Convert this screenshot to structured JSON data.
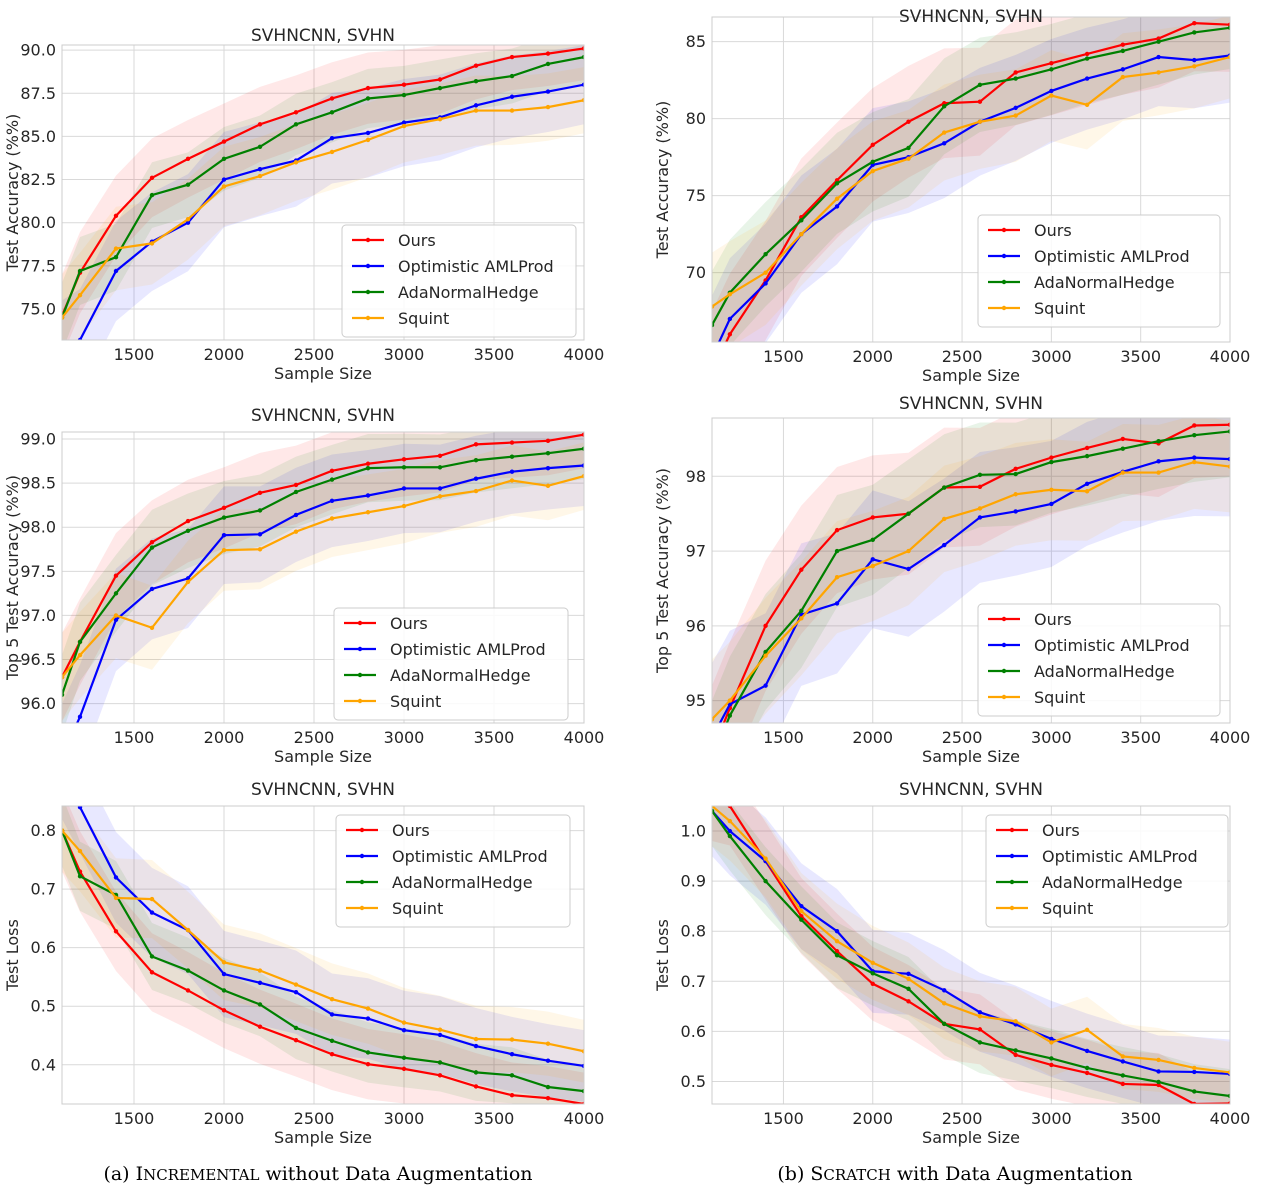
{
  "captions": {
    "left": {
      "prefix": "(a) I",
      "smallcaps": "NCREMENTAL",
      "suffix": " without Data Augmentation"
    },
    "right": {
      "prefix": "(b) S",
      "smallcaps": "CRATCH",
      "suffix": " with Data Augmentation"
    }
  },
  "colors": {
    "Ours": "#ff0000",
    "Optimistic AMLProd": "#0000ff",
    "AdaNormalHedge": "#008000",
    "Squint": "#ffa500"
  },
  "chart_data": [
    {
      "type": "line",
      "title": "SVHNCNN, SVHN",
      "xlabel": "Sample Size",
      "ylabel": "Test Accuracy (%%)",
      "xlim": [
        1100,
        4000
      ],
      "ylim": [
        73.2,
        90.3
      ],
      "xticks": [
        1500,
        2000,
        2500,
        3000,
        3500,
        4000
      ],
      "yticks": [
        75.0,
        77.5,
        80.0,
        82.5,
        85.0,
        87.5,
        90.0
      ],
      "ytick_labels": [
        "75.0",
        "77.5",
        "80.0",
        "82.5",
        "85.0",
        "87.5",
        "90.0"
      ],
      "grid": true,
      "legend": "lower-right",
      "x": [
        1100,
        1200,
        1400,
        1600,
        1800,
        2000,
        2200,
        2400,
        2600,
        2800,
        3000,
        3200,
        3400,
        3600,
        3800,
        4000
      ],
      "series": [
        {
          "name": "Ours",
          "values": [
            74.6,
            77.1,
            80.4,
            82.6,
            83.7,
            84.7,
            85.7,
            86.4,
            87.2,
            87.8,
            88.0,
            88.3,
            89.1,
            89.6,
            89.8,
            90.1
          ]
        },
        {
          "name": "Optimistic AMLProd",
          "values": [
            72.5,
            73.2,
            77.2,
            78.9,
            80.0,
            82.5,
            83.1,
            83.6,
            84.9,
            85.2,
            85.8,
            86.1,
            86.8,
            87.3,
            87.6,
            88.0
          ]
        },
        {
          "name": "AdaNormalHedge",
          "values": [
            74.5,
            77.2,
            78.0,
            81.6,
            82.2,
            83.7,
            84.4,
            85.7,
            86.4,
            87.2,
            87.4,
            87.8,
            88.2,
            88.5,
            89.2,
            89.6
          ]
        },
        {
          "name": "Squint",
          "values": [
            74.5,
            75.8,
            78.5,
            78.8,
            80.2,
            82.1,
            82.7,
            83.5,
            84.1,
            84.8,
            85.6,
            86.0,
            86.5,
            86.5,
            86.7,
            87.1
          ]
        }
      ]
    },
    {
      "type": "line",
      "title": "SVHNCNN, SVHN",
      "xlabel": "Sample Size",
      "ylabel": "Test Accuracy (%%)",
      "xlim": [
        1100,
        4000
      ],
      "ylim": [
        65.5,
        86.6
      ],
      "xticks": [
        1500,
        2000,
        2500,
        3000,
        3500,
        4000
      ],
      "yticks": [
        70,
        75,
        80,
        85
      ],
      "ytick_labels": [
        "70",
        "75",
        "80",
        "85"
      ],
      "grid": true,
      "legend": "lower-right",
      "x": [
        1100,
        1200,
        1400,
        1600,
        1800,
        2000,
        2200,
        2400,
        2600,
        2800,
        3000,
        3200,
        3400,
        3600,
        3800,
        4000
      ],
      "series": [
        {
          "name": "Ours",
          "values": [
            63.5,
            66.0,
            69.5,
            73.6,
            76.0,
            78.3,
            79.8,
            81.0,
            81.1,
            83.0,
            83.6,
            84.2,
            84.8,
            85.2,
            86.2,
            86.1
          ]
        },
        {
          "name": "Optimistic AMLProd",
          "values": [
            64.5,
            67.0,
            69.3,
            72.5,
            74.3,
            77.0,
            77.5,
            78.4,
            79.8,
            80.7,
            81.8,
            82.6,
            83.2,
            84.0,
            83.8,
            84.1
          ]
        },
        {
          "name": "AdaNormalHedge",
          "values": [
            66.6,
            68.7,
            71.2,
            73.4,
            75.8,
            77.2,
            78.1,
            80.8,
            82.2,
            82.6,
            83.2,
            83.9,
            84.4,
            85.0,
            85.6,
            85.9
          ]
        },
        {
          "name": "Squint",
          "values": [
            67.8,
            68.6,
            70.0,
            72.5,
            74.8,
            76.6,
            77.4,
            79.1,
            79.8,
            80.2,
            81.5,
            80.9,
            82.7,
            83.0,
            83.4,
            84.0
          ]
        }
      ]
    },
    {
      "type": "line",
      "title": "SVHNCNN, SVHN",
      "xlabel": "Sample Size",
      "ylabel": "Top 5 Test Accuracy (%%)",
      "xlim": [
        1100,
        4000
      ],
      "ylim": [
        95.78,
        99.08
      ],
      "xticks": [
        1500,
        2000,
        2500,
        3000,
        3500,
        4000
      ],
      "yticks": [
        96.0,
        96.5,
        97.0,
        97.5,
        98.0,
        98.5,
        99.0
      ],
      "ytick_labels": [
        "96.0",
        "96.5",
        "97.0",
        "97.5",
        "98.0",
        "98.5",
        "99.0"
      ],
      "grid": true,
      "legend": "lower-right",
      "x": [
        1100,
        1200,
        1400,
        1600,
        1800,
        2000,
        2200,
        2400,
        2600,
        2800,
        3000,
        3200,
        3400,
        3600,
        3800,
        4000
      ],
      "series": [
        {
          "name": "Ours",
          "values": [
            96.3,
            96.7,
            97.45,
            97.83,
            98.07,
            98.22,
            98.39,
            98.48,
            98.64,
            98.72,
            98.77,
            98.81,
            98.94,
            98.96,
            98.98,
            99.05
          ]
        },
        {
          "name": "Optimistic AMLProd",
          "values": [
            95.4,
            95.85,
            96.95,
            97.3,
            97.42,
            97.91,
            97.92,
            98.14,
            98.3,
            98.36,
            98.44,
            98.44,
            98.55,
            98.63,
            98.67,
            98.7
          ]
        },
        {
          "name": "AdaNormalHedge",
          "values": [
            96.1,
            96.7,
            97.25,
            97.77,
            97.96,
            98.11,
            98.19,
            98.4,
            98.54,
            98.67,
            98.68,
            98.68,
            98.76,
            98.8,
            98.84,
            98.89
          ]
        },
        {
          "name": "Squint",
          "values": [
            96.3,
            96.55,
            97.0,
            96.86,
            97.38,
            97.74,
            97.75,
            97.95,
            98.1,
            98.17,
            98.24,
            98.35,
            98.41,
            98.53,
            98.47,
            98.58
          ]
        }
      ]
    },
    {
      "type": "line",
      "title": "SVHNCNN, SVHN",
      "xlabel": "Sample Size",
      "ylabel": "Top 5 Test Accuracy (%%)",
      "xlim": [
        1100,
        4000
      ],
      "ylim": [
        94.7,
        98.78
      ],
      "xticks": [
        1500,
        2000,
        2500,
        3000,
        3500,
        4000
      ],
      "yticks": [
        95,
        96,
        97,
        98
      ],
      "ytick_labels": [
        "95",
        "96",
        "97",
        "98"
      ],
      "grid": true,
      "legend": "lower-right",
      "x": [
        1100,
        1200,
        1400,
        1600,
        1800,
        2000,
        2200,
        2400,
        2600,
        2800,
        3000,
        3200,
        3400,
        3600,
        3800,
        4000
      ],
      "series": [
        {
          "name": "Ours",
          "values": [
            94.3,
            94.9,
            96.0,
            96.75,
            97.28,
            97.45,
            97.5,
            97.85,
            97.86,
            98.1,
            98.25,
            98.38,
            98.5,
            98.44,
            98.68,
            98.69
          ]
        },
        {
          "name": "Optimistic AMLProd",
          "values": [
            94.5,
            94.95,
            95.2,
            96.15,
            96.3,
            96.89,
            96.76,
            97.08,
            97.45,
            97.53,
            97.63,
            97.9,
            98.06,
            98.2,
            98.25,
            98.23
          ]
        },
        {
          "name": "AdaNormalHedge",
          "values": [
            94.2,
            94.8,
            95.65,
            96.2,
            97.0,
            97.15,
            97.5,
            97.85,
            98.02,
            98.03,
            98.19,
            98.27,
            98.37,
            98.47,
            98.55,
            98.6
          ]
        },
        {
          "name": "Squint",
          "values": [
            94.75,
            95.0,
            95.6,
            96.1,
            96.65,
            96.8,
            97.0,
            97.43,
            97.57,
            97.76,
            97.82,
            97.8,
            98.05,
            98.05,
            98.19,
            98.13
          ]
        }
      ]
    },
    {
      "type": "line",
      "title": "SVHNCNN, SVHN",
      "xlabel": "Sample Size",
      "ylabel": "Test Loss",
      "xlim": [
        1100,
        4000
      ],
      "ylim": [
        0.333,
        0.842
      ],
      "xticks": [
        1500,
        2000,
        2500,
        3000,
        3500,
        4000
      ],
      "yticks": [
        0.4,
        0.5,
        0.6,
        0.7,
        0.8
      ],
      "ytick_labels": [
        "0.4",
        "0.5",
        "0.6",
        "0.7",
        "0.8"
      ],
      "grid": true,
      "legend": "upper-right",
      "x": [
        1100,
        1200,
        1400,
        1600,
        1800,
        2000,
        2200,
        2400,
        2600,
        2800,
        3000,
        3200,
        3400,
        3600,
        3800,
        4000
      ],
      "series": [
        {
          "name": "Ours",
          "values": [
            0.8,
            0.73,
            0.628,
            0.558,
            0.527,
            0.493,
            0.465,
            0.442,
            0.418,
            0.401,
            0.393,
            0.382,
            0.363,
            0.348,
            0.343,
            0.333
          ]
        },
        {
          "name": "Optimistic AMLProd",
          "values": [
            0.9,
            0.84,
            0.72,
            0.66,
            0.63,
            0.555,
            0.54,
            0.524,
            0.486,
            0.479,
            0.459,
            0.451,
            0.432,
            0.418,
            0.407,
            0.398
          ]
        },
        {
          "name": "AdaNormalHedge",
          "values": [
            0.8,
            0.722,
            0.69,
            0.585,
            0.561,
            0.527,
            0.503,
            0.463,
            0.441,
            0.421,
            0.412,
            0.404,
            0.387,
            0.382,
            0.362,
            0.355
          ]
        },
        {
          "name": "Squint",
          "values": [
            0.8,
            0.765,
            0.685,
            0.683,
            0.63,
            0.575,
            0.561,
            0.537,
            0.512,
            0.496,
            0.472,
            0.46,
            0.444,
            0.443,
            0.436,
            0.423
          ]
        }
      ]
    },
    {
      "type": "line",
      "title": "SVHNCNN, SVHN",
      "xlabel": "Sample Size",
      "ylabel": "Test Loss",
      "xlim": [
        1100,
        4000
      ],
      "ylim": [
        0.455,
        1.05
      ],
      "xticks": [
        1500,
        2000,
        2500,
        3000,
        3500,
        4000
      ],
      "yticks": [
        0.5,
        0.6,
        0.7,
        0.8,
        0.9,
        1.0
      ],
      "ytick_labels": [
        "0.5",
        "0.6",
        "0.7",
        "0.8",
        "0.9",
        "1.0"
      ],
      "grid": true,
      "legend": "upper-right",
      "x": [
        1100,
        1200,
        1400,
        1600,
        1800,
        2000,
        2200,
        2400,
        2600,
        2800,
        3000,
        3200,
        3400,
        3600,
        3800,
        4000
      ],
      "series": [
        {
          "name": "Ours",
          "values": [
            1.06,
            1.05,
            0.94,
            0.83,
            0.76,
            0.695,
            0.66,
            0.615,
            0.604,
            0.553,
            0.533,
            0.517,
            0.495,
            0.493,
            0.455,
            0.456
          ]
        },
        {
          "name": "Optimistic AMLProd",
          "values": [
            1.04,
            1.0,
            0.94,
            0.85,
            0.8,
            0.72,
            0.715,
            0.682,
            0.638,
            0.614,
            0.585,
            0.561,
            0.54,
            0.52,
            0.519,
            0.515
          ]
        },
        {
          "name": "AdaNormalHedge",
          "values": [
            1.04,
            0.99,
            0.9,
            0.823,
            0.752,
            0.716,
            0.685,
            0.615,
            0.578,
            0.562,
            0.546,
            0.527,
            0.512,
            0.499,
            0.48,
            0.471
          ]
        },
        {
          "name": "Squint",
          "values": [
            1.05,
            1.02,
            0.945,
            0.84,
            0.78,
            0.737,
            0.705,
            0.656,
            0.63,
            0.62,
            0.578,
            0.603,
            0.55,
            0.543,
            0.527,
            0.518
          ]
        }
      ]
    }
  ]
}
